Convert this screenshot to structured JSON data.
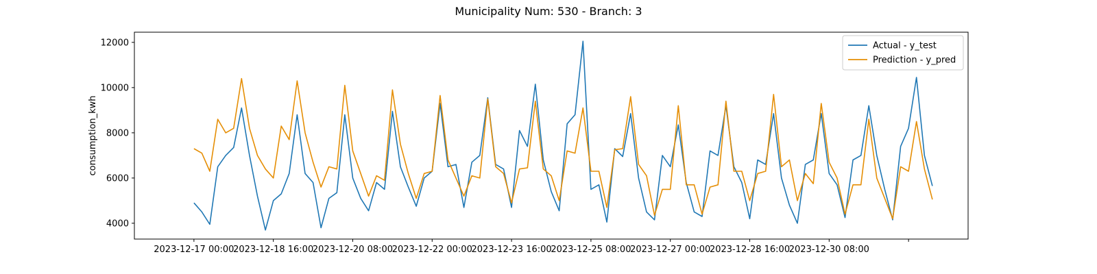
{
  "chart_data": {
    "type": "line",
    "title": "Municipality Num: 530 - Branch: 3",
    "xlabel": "",
    "ylabel": "consumption_kwh",
    "ylim": [
      3300,
      12450
    ],
    "yticks": [
      4000,
      6000,
      8000,
      10000,
      12000
    ],
    "xticks": [
      {
        "x": "2023-12-17 00:00",
        "label": "2023-12-17 00:00"
      },
      {
        "x": "2023-12-18 16:00",
        "label": "2023-12-18 16:00"
      },
      {
        "x": "2023-12-20 08:00",
        "label": "2023-12-20 08:00"
      },
      {
        "x": "2023-12-22 00:00",
        "label": "2023-12-22 00:00"
      },
      {
        "x": "2023-12-23 16:00",
        "label": "2023-12-23 16:00"
      },
      {
        "x": "2023-12-25 08:00",
        "label": "2023-12-25 08:00"
      },
      {
        "x": "2023-12-27 00:00",
        "label": "2023-12-27 00:00"
      },
      {
        "x": "2023-12-28 16:00",
        "label": "2023-12-28 16:00"
      },
      {
        "x": "2023-12-30 08:00",
        "label": "2023-12-30 08:00"
      },
      {
        "x": "2024-01-01 00:00",
        "label": ""
      }
    ],
    "grid": false,
    "legend_position": "top-right",
    "series": [
      {
        "name": "Actual - y_test",
        "color": "#1f77b4",
        "points": [
          [
            "2023-12-17 00:00",
            4900
          ],
          [
            "2023-12-17 04:00",
            4500
          ],
          [
            "2023-12-17 08:00",
            3950
          ],
          [
            "2023-12-17 12:00",
            6500
          ],
          [
            "2023-12-17 16:00",
            7000
          ],
          [
            "2023-12-17 20:00",
            7350
          ],
          [
            "2023-12-18 00:00",
            9100
          ],
          [
            "2023-12-18 04:00",
            7000
          ],
          [
            "2023-12-18 08:00",
            5200
          ],
          [
            "2023-12-18 12:00",
            3700
          ],
          [
            "2023-12-18 16:00",
            5000
          ],
          [
            "2023-12-18 20:00",
            5300
          ],
          [
            "2023-12-19 00:00",
            6200
          ],
          [
            "2023-12-19 04:00",
            8800
          ],
          [
            "2023-12-19 08:00",
            6200
          ],
          [
            "2023-12-19 12:00",
            5800
          ],
          [
            "2023-12-19 16:00",
            3800
          ],
          [
            "2023-12-19 20:00",
            5100
          ],
          [
            "2023-12-20 00:00",
            5350
          ],
          [
            "2023-12-20 04:00",
            8800
          ],
          [
            "2023-12-20 08:00",
            6000
          ],
          [
            "2023-12-20 12:00",
            5100
          ],
          [
            "2023-12-20 16:00",
            4550
          ],
          [
            "2023-12-20 20:00",
            5800
          ],
          [
            "2023-12-21 00:00",
            5500
          ],
          [
            "2023-12-21 04:00",
            8950
          ],
          [
            "2023-12-21 08:00",
            6500
          ],
          [
            "2023-12-21 12:00",
            5600
          ],
          [
            "2023-12-21 16:00",
            4750
          ],
          [
            "2023-12-21 20:00",
            6000
          ],
          [
            "2023-12-22 00:00",
            6300
          ],
          [
            "2023-12-22 04:00",
            9300
          ],
          [
            "2023-12-22 08:00",
            6500
          ],
          [
            "2023-12-22 12:00",
            6600
          ],
          [
            "2023-12-22 16:00",
            4700
          ],
          [
            "2023-12-22 20:00",
            6700
          ],
          [
            "2023-12-23 00:00",
            7000
          ],
          [
            "2023-12-23 04:00",
            9550
          ],
          [
            "2023-12-23 08:00",
            6600
          ],
          [
            "2023-12-23 12:00",
            6400
          ],
          [
            "2023-12-23 16:00",
            4700
          ],
          [
            "2023-12-23 20:00",
            8100
          ],
          [
            "2023-12-24 00:00",
            7400
          ],
          [
            "2023-12-24 04:00",
            10150
          ],
          [
            "2023-12-24 08:00",
            6800
          ],
          [
            "2023-12-24 12:00",
            5400
          ],
          [
            "2023-12-24 16:00",
            4550
          ],
          [
            "2023-12-24 20:00",
            8400
          ],
          [
            "2023-12-25 00:00",
            8800
          ],
          [
            "2023-12-25 04:00",
            12050
          ],
          [
            "2023-12-25 08:00",
            5500
          ],
          [
            "2023-12-25 12:00",
            5700
          ],
          [
            "2023-12-25 16:00",
            4050
          ],
          [
            "2023-12-25 20:00",
            7300
          ],
          [
            "2023-12-26 00:00",
            6950
          ],
          [
            "2023-12-26 04:00",
            8850
          ],
          [
            "2023-12-26 08:00",
            6000
          ],
          [
            "2023-12-26 12:00",
            4500
          ],
          [
            "2023-12-26 16:00",
            4150
          ],
          [
            "2023-12-26 20:00",
            7000
          ],
          [
            "2023-12-27 00:00",
            6500
          ],
          [
            "2023-12-27 04:00",
            8350
          ],
          [
            "2023-12-27 08:00",
            5800
          ],
          [
            "2023-12-27 12:00",
            4500
          ],
          [
            "2023-12-27 16:00",
            4300
          ],
          [
            "2023-12-27 20:00",
            7200
          ],
          [
            "2023-12-28 00:00",
            7000
          ],
          [
            "2023-12-28 04:00",
            9200
          ],
          [
            "2023-12-28 08:00",
            6500
          ],
          [
            "2023-12-28 12:00",
            5800
          ],
          [
            "2023-12-28 16:00",
            4200
          ],
          [
            "2023-12-28 20:00",
            6800
          ],
          [
            "2023-12-29 00:00",
            6600
          ],
          [
            "2023-12-29 04:00",
            8850
          ],
          [
            "2023-12-29 08:00",
            6000
          ],
          [
            "2023-12-29 12:00",
            4800
          ],
          [
            "2023-12-29 16:00",
            4000
          ],
          [
            "2023-12-29 20:00",
            6600
          ],
          [
            "2023-12-30 00:00",
            6800
          ],
          [
            "2023-12-30 04:00",
            8850
          ],
          [
            "2023-12-30 08:00",
            6200
          ],
          [
            "2023-12-30 12:00",
            5700
          ],
          [
            "2023-12-30 16:00",
            4250
          ],
          [
            "2023-12-30 20:00",
            6800
          ],
          [
            "2023-12-31 00:00",
            7000
          ],
          [
            "2023-12-31 04:00",
            9200
          ],
          [
            "2023-12-31 08:00",
            7000
          ],
          [
            "2023-12-31 12:00",
            5500
          ],
          [
            "2023-12-31 16:00",
            4150
          ],
          [
            "2023-12-31 20:00",
            7400
          ],
          [
            "2024-01-01 00:00",
            8200
          ],
          [
            "2024-01-01 04:00",
            10450
          ],
          [
            "2024-01-01 08:00",
            7000
          ],
          [
            "2024-01-01 12:00",
            5650
          ]
        ]
      },
      {
        "name": "Prediction - y_pred",
        "color": "#e58e05",
        "points": [
          [
            "2023-12-17 00:00",
            7300
          ],
          [
            "2023-12-17 04:00",
            7100
          ],
          [
            "2023-12-17 08:00",
            6300
          ],
          [
            "2023-12-17 12:00",
            8600
          ],
          [
            "2023-12-17 16:00",
            8000
          ],
          [
            "2023-12-17 20:00",
            8200
          ],
          [
            "2023-12-18 00:00",
            10400
          ],
          [
            "2023-12-18 04:00",
            8200
          ],
          [
            "2023-12-18 08:00",
            7000
          ],
          [
            "2023-12-18 12:00",
            6400
          ],
          [
            "2023-12-18 16:00",
            6000
          ],
          [
            "2023-12-18 20:00",
            8300
          ],
          [
            "2023-12-19 00:00",
            7700
          ],
          [
            "2023-12-19 04:00",
            10300
          ],
          [
            "2023-12-19 08:00",
            8000
          ],
          [
            "2023-12-19 12:00",
            6700
          ],
          [
            "2023-12-19 16:00",
            5600
          ],
          [
            "2023-12-19 20:00",
            6500
          ],
          [
            "2023-12-20 00:00",
            6400
          ],
          [
            "2023-12-20 04:00",
            10100
          ],
          [
            "2023-12-20 08:00",
            7200
          ],
          [
            "2023-12-20 12:00",
            6200
          ],
          [
            "2023-12-20 16:00",
            5200
          ],
          [
            "2023-12-20 20:00",
            6100
          ],
          [
            "2023-12-21 00:00",
            5900
          ],
          [
            "2023-12-21 04:00",
            9900
          ],
          [
            "2023-12-21 08:00",
            7500
          ],
          [
            "2023-12-21 12:00",
            6200
          ],
          [
            "2023-12-21 16:00",
            5100
          ],
          [
            "2023-12-21 20:00",
            6200
          ],
          [
            "2023-12-22 00:00",
            6300
          ],
          [
            "2023-12-22 04:00",
            9650
          ],
          [
            "2023-12-22 08:00",
            6800
          ],
          [
            "2023-12-22 12:00",
            6000
          ],
          [
            "2023-12-22 16:00",
            5200
          ],
          [
            "2023-12-22 20:00",
            6100
          ],
          [
            "2023-12-23 00:00",
            6000
          ],
          [
            "2023-12-23 04:00",
            9500
          ],
          [
            "2023-12-23 08:00",
            6500
          ],
          [
            "2023-12-23 12:00",
            6200
          ],
          [
            "2023-12-23 16:00",
            4900
          ],
          [
            "2023-12-23 20:00",
            6400
          ],
          [
            "2023-12-24 00:00",
            6450
          ],
          [
            "2023-12-24 04:00",
            9400
          ],
          [
            "2023-12-24 08:00",
            6400
          ],
          [
            "2023-12-24 12:00",
            6100
          ],
          [
            "2023-12-24 16:00",
            5000
          ],
          [
            "2023-12-24 20:00",
            7200
          ],
          [
            "2023-12-25 00:00",
            7100
          ],
          [
            "2023-12-25 04:00",
            9100
          ],
          [
            "2023-12-25 08:00",
            6300
          ],
          [
            "2023-12-25 12:00",
            6300
          ],
          [
            "2023-12-25 16:00",
            4700
          ],
          [
            "2023-12-25 20:00",
            7250
          ],
          [
            "2023-12-26 00:00",
            7300
          ],
          [
            "2023-12-26 04:00",
            9600
          ],
          [
            "2023-12-26 08:00",
            6600
          ],
          [
            "2023-12-26 12:00",
            6100
          ],
          [
            "2023-12-26 16:00",
            4350
          ],
          [
            "2023-12-26 20:00",
            5500
          ],
          [
            "2023-12-27 00:00",
            5500
          ],
          [
            "2023-12-27 04:00",
            9200
          ],
          [
            "2023-12-27 08:00",
            5700
          ],
          [
            "2023-12-27 12:00",
            5700
          ],
          [
            "2023-12-27 16:00",
            4400
          ],
          [
            "2023-12-27 20:00",
            5600
          ],
          [
            "2023-12-28 00:00",
            5700
          ],
          [
            "2023-12-28 04:00",
            9400
          ],
          [
            "2023-12-28 08:00",
            6300
          ],
          [
            "2023-12-28 12:00",
            6300
          ],
          [
            "2023-12-28 16:00",
            5000
          ],
          [
            "2023-12-28 20:00",
            6200
          ],
          [
            "2023-12-29 00:00",
            6300
          ],
          [
            "2023-12-29 04:00",
            9700
          ],
          [
            "2023-12-29 08:00",
            6500
          ],
          [
            "2023-12-29 12:00",
            6800
          ],
          [
            "2023-12-29 16:00",
            5000
          ],
          [
            "2023-12-29 20:00",
            6200
          ],
          [
            "2023-12-30 00:00",
            5750
          ],
          [
            "2023-12-30 04:00",
            9300
          ],
          [
            "2023-12-30 08:00",
            6700
          ],
          [
            "2023-12-30 12:00",
            6000
          ],
          [
            "2023-12-30 16:00",
            4400
          ],
          [
            "2023-12-30 20:00",
            5700
          ],
          [
            "2023-12-31 00:00",
            5700
          ],
          [
            "2023-12-31 04:00",
            8600
          ],
          [
            "2023-12-31 08:00",
            6000
          ],
          [
            "2023-12-31 12:00",
            5100
          ],
          [
            "2023-12-31 16:00",
            4200
          ],
          [
            "2023-12-31 20:00",
            6500
          ],
          [
            "2024-01-01 00:00",
            6300
          ],
          [
            "2024-01-01 04:00",
            8500
          ],
          [
            "2024-01-01 08:00",
            6400
          ],
          [
            "2024-01-01 12:00",
            5050
          ]
        ]
      }
    ]
  }
}
